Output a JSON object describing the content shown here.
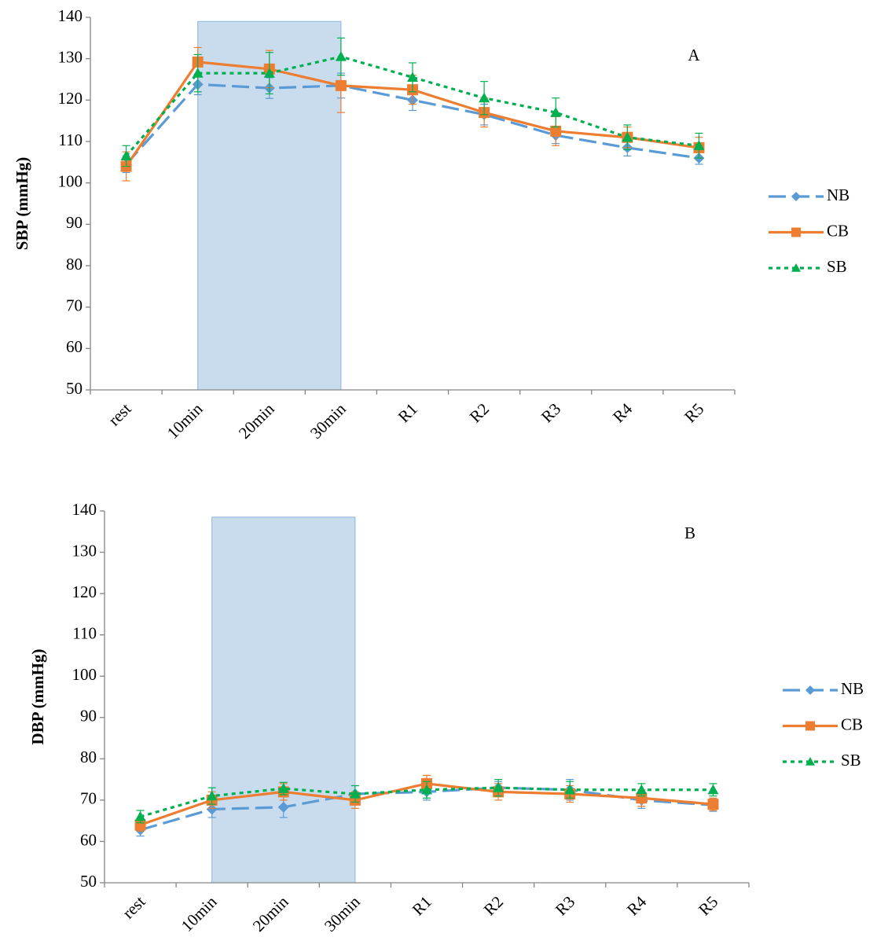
{
  "chart_data": [
    {
      "type": "line",
      "annotation": "A",
      "y_label": "SBP (mmHg)",
      "categories": [
        "rest",
        "10min",
        "20min",
        "30min",
        "R1",
        "R2",
        "R3",
        "R4",
        "R5"
      ],
      "ylim": [
        50,
        140
      ],
      "yticks": [
        50,
        60,
        70,
        80,
        90,
        100,
        110,
        120,
        130,
        140
      ],
      "shade": {
        "from": 1,
        "to": 3,
        "top": 139,
        "color": "#9dbfe0"
      },
      "legend": "right",
      "series": [
        {
          "name": "NB",
          "color": "#5b9bd5",
          "marker": "diamond",
          "dash": "long",
          "values": [
            104.5,
            123.8,
            122.9,
            123.5,
            120,
            116.5,
            111.5,
            108.5,
            106
          ],
          "errors": [
            2,
            2.5,
            2.5,
            3,
            2.5,
            2.5,
            2,
            2,
            1.5
          ]
        },
        {
          "name": "CB",
          "color": "#ed7d31",
          "marker": "square",
          "dash": "solid",
          "values": [
            104,
            129.2,
            127.5,
            123.5,
            122.5,
            117,
            112.5,
            111,
            108.5
          ],
          "errors": [
            3.5,
            3.5,
            4.5,
            6.5,
            3.5,
            3.5,
            3.5,
            2.5,
            2.5
          ]
        },
        {
          "name": "SB",
          "color": "#00b050",
          "marker": "triangle",
          "dash": "dot",
          "values": [
            106.5,
            126.5,
            126.5,
            130.5,
            125.5,
            120.5,
            117,
            111,
            109
          ],
          "errors": [
            2.5,
            4.5,
            5,
            4.5,
            3.5,
            4,
            3.5,
            3,
            3
          ]
        }
      ]
    },
    {
      "type": "line",
      "annotation": "B",
      "y_label": "DBP (mmHg)",
      "categories": [
        "rest",
        "10min",
        "20min",
        "30min",
        "R1",
        "R2",
        "R3",
        "R4",
        "R5"
      ],
      "ylim": [
        50,
        140
      ],
      "yticks": [
        50,
        60,
        70,
        80,
        90,
        100,
        110,
        120,
        130,
        140
      ],
      "shade": {
        "from": 1,
        "to": 3,
        "top": 138.5,
        "color": "#9dbfe0"
      },
      "legend": "right",
      "series": [
        {
          "name": "NB",
          "color": "#5b9bd5",
          "marker": "diamond",
          "dash": "long",
          "values": [
            62.8,
            67.8,
            68.3,
            71.5,
            72,
            73,
            72.5,
            70,
            68.8
          ],
          "errors": [
            1.5,
            2,
            2.5,
            2,
            2,
            1.5,
            2.5,
            2,
            1.5
          ]
        },
        {
          "name": "CB",
          "color": "#ed7d31",
          "marker": "square",
          "dash": "solid",
          "values": [
            64,
            70,
            72,
            70,
            74,
            72,
            71.5,
            70.5,
            69
          ],
          "errors": [
            1.5,
            2,
            2,
            2,
            2,
            2,
            2,
            2,
            1.5
          ]
        },
        {
          "name": "SB",
          "color": "#00b050",
          "marker": "triangle",
          "dash": "dot",
          "values": [
            66,
            71,
            72.8,
            71.5,
            72.5,
            73,
            72.5,
            72.5,
            72.5
          ],
          "errors": [
            1.5,
            2,
            1.5,
            2,
            2,
            2,
            2,
            1.5,
            1.5
          ]
        }
      ]
    }
  ]
}
